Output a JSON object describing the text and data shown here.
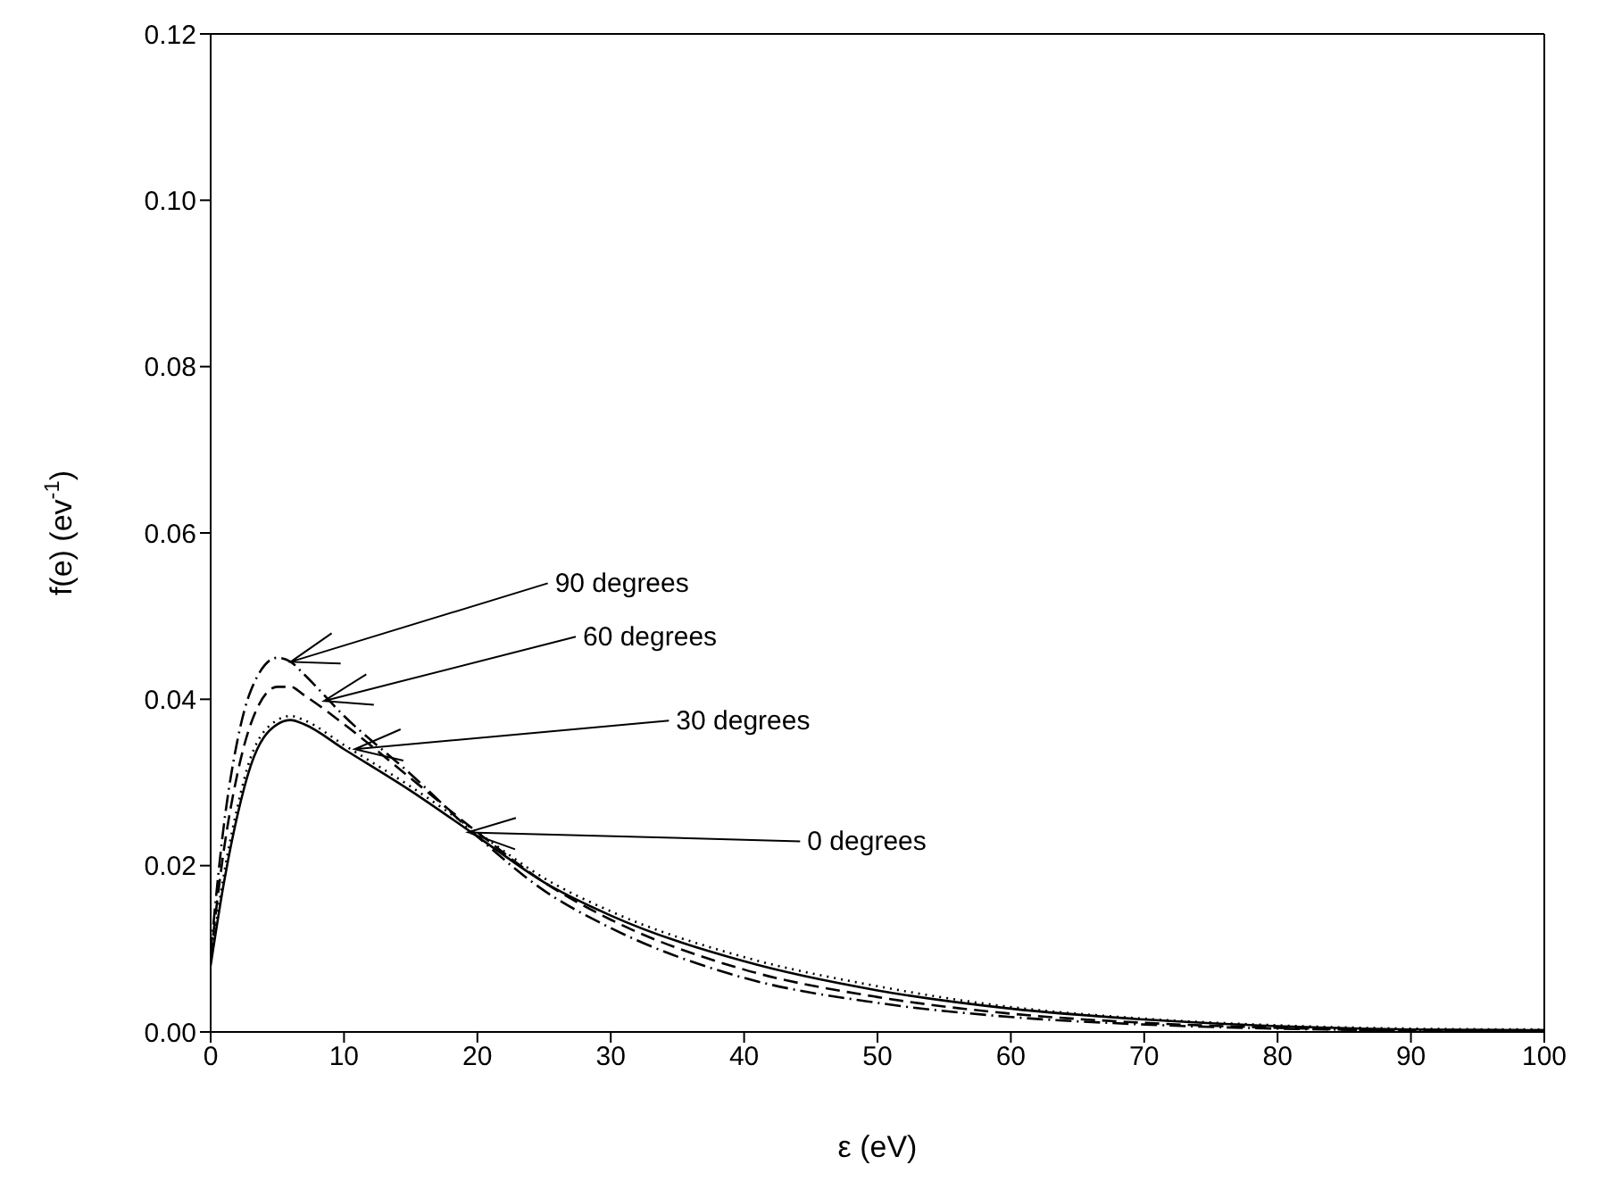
{
  "chart_data": {
    "type": "line",
    "xlabel": "ε (eV)",
    "ylabel": "f(e) (ev$^{-1}$)",
    "x": [
      0,
      1,
      2,
      3,
      5,
      6,
      7,
      10,
      15,
      20,
      25,
      30,
      40,
      50,
      60,
      70,
      80,
      90,
      100
    ],
    "series": [
      {
        "color": "#000000",
        "line_style": "solid",
        "values": [
          0.008,
          0.018,
          0.026,
          0.032,
          0.037,
          0.0375,
          0.037,
          0.034,
          0.029,
          0.0235,
          0.018,
          0.014,
          0.0085,
          0.005,
          0.0028,
          0.0015,
          0.0007,
          0.0003,
          0.0002
        ]
      },
      {
        "color": "#000000",
        "line_style": "dotted",
        "values": [
          0.0085,
          0.019,
          0.027,
          0.033,
          0.0375,
          0.038,
          0.0375,
          0.0345,
          0.0295,
          0.024,
          0.0185,
          0.0145,
          0.009,
          0.0055,
          0.003,
          0.0016,
          0.0008,
          0.0004,
          0.0003
        ]
      },
      {
        "color": "#000000",
        "line_style": "dashed",
        "values": [
          0.009,
          0.022,
          0.031,
          0.037,
          0.0415,
          0.0415,
          0.0405,
          0.037,
          0.0305,
          0.024,
          0.018,
          0.0135,
          0.0075,
          0.0042,
          0.0022,
          0.0011,
          0.0005,
          0.0002,
          0.0002
        ]
      },
      {
        "color": "#000000",
        "line_style": "dashdot",
        "values": [
          0.0095,
          0.025,
          0.035,
          0.041,
          0.045,
          0.0445,
          0.043,
          0.038,
          0.031,
          0.0235,
          0.017,
          0.0125,
          0.0065,
          0.0035,
          0.0018,
          0.0009,
          0.0004,
          0.0002,
          0.0001
        ]
      }
    ],
    "xlim": [
      0,
      100
    ],
    "xticks": [
      0,
      10,
      20,
      30,
      40,
      50,
      60,
      70,
      80,
      90,
      100
    ],
    "ylim": [
      0,
      0.12
    ],
    "yticks": [
      {
        "value": 0,
        "label": "0.00"
      },
      {
        "value": 0.02,
        "label": "0.02"
      },
      {
        "value": 0.04,
        "label": "0.04"
      },
      {
        "value": 0.06,
        "label": "0.06"
      },
      {
        "value": 0.08,
        "label": "0.08"
      },
      {
        "value": 0.1,
        "label": "0.10"
      },
      {
        "value": 0.12,
        "label": "0.12"
      }
    ],
    "grid": false,
    "legend": false,
    "marker": "none",
    "annotations": [
      {
        "text": "90 degrees",
        "x": 6,
        "y": 0.0445
      },
      {
        "text": "60 degrees",
        "x": 8.5,
        "y": 0.0398
      },
      {
        "text": "30 degrees",
        "x": 10.8,
        "y": 0.034
      },
      {
        "text": "0 degrees",
        "x": 19.3,
        "y": 0.024
      }
    ]
  }
}
